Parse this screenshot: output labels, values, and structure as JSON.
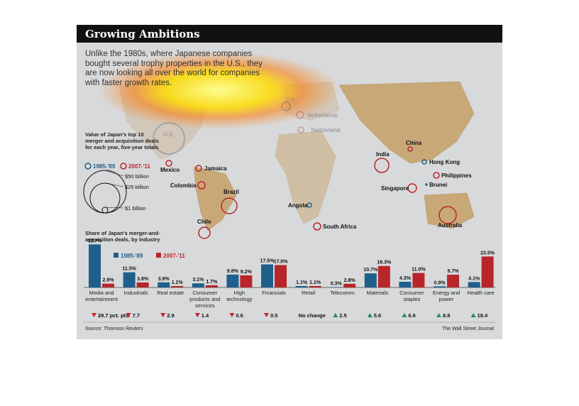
{
  "header": {
    "title": "Growing Ambitions",
    "intro": "Unlike the 1980s, where Japanese companies bought several trophy properties in the U.S., they are now looking all over the world for companies with faster growth rates."
  },
  "map": {
    "legend_title": "Value of Japan's top 10 merger and acquisition deals for each year, five-year totals",
    "period_a": "1985-'89",
    "period_b": "2007-'11",
    "scale": [
      "$50 billion",
      "$25 billion",
      "$1 billion"
    ],
    "places": [
      {
        "name": "U.S.",
        "period": "1985-'89",
        "faded": true
      },
      {
        "name": "U.K.",
        "period": "1985-'89",
        "faded": true
      },
      {
        "name": "Netherlands",
        "period": "2007-'11",
        "faded": true
      },
      {
        "name": "Switzerland",
        "period": "2007-'11",
        "faded": true
      },
      {
        "name": "Mexico",
        "period": "2007-'11"
      },
      {
        "name": "Jamaica",
        "period": "2007-'11"
      },
      {
        "name": "Colombia",
        "period": "2007-'11"
      },
      {
        "name": "Brazil",
        "period": "2007-'11"
      },
      {
        "name": "Chile",
        "period": "2007-'11"
      },
      {
        "name": "Angola",
        "period": "1985-'89"
      },
      {
        "name": "South Africa",
        "period": "2007-'11"
      },
      {
        "name": "India",
        "period": "2007-'11"
      },
      {
        "name": "China",
        "period": "2007-'11"
      },
      {
        "name": "Hong Kong",
        "period": "1985-'89"
      },
      {
        "name": "Philippines",
        "period": "2007-'11"
      },
      {
        "name": "Singapore",
        "period": "2007-'11"
      },
      {
        "name": "Brunei",
        "period": "1985-'89"
      },
      {
        "name": "Australia",
        "period": "2007-'11"
      }
    ]
  },
  "chart_data": {
    "type": "bar",
    "title": "Share of Japan's merger-and-acquisition deals, by industry",
    "categories": [
      "Media and entertainment",
      "Industrials",
      "Real estate",
      "Consumer products and services",
      "High technology",
      "Financials",
      "Retail",
      "Telecomm.",
      "Materials",
      "Consumer staples",
      "Energy and power",
      "Health care"
    ],
    "series": [
      {
        "name": "1985-'89",
        "color": "#1f5f8b",
        "values": [
          32.7,
          11.5,
          3.9,
          3.1,
          9.8,
          17.5,
          1.1,
          0.3,
          10.7,
          4.3,
          0.9,
          4.1
        ]
      },
      {
        "name": "2007-'11",
        "color": "#b8262b",
        "values": [
          2.9,
          3.8,
          1.1,
          1.7,
          9.2,
          17.0,
          1.1,
          2.8,
          16.3,
          11.0,
          9.7,
          23.5
        ]
      }
    ],
    "value_labels": {
      "1985-'89": [
        "32.7%",
        "11.5%",
        "3.9%",
        "3.1%",
        "9.8%",
        "17.5%",
        "1.1%",
        "0.3%",
        "10.7%",
        "4.3%",
        "0.9%",
        "4.1%"
      ],
      "2007-'11": [
        "2.9%",
        "3.8%",
        "1.1%",
        "1.7%",
        "9.2%",
        "17.0%",
        "1.1%",
        "2.8%",
        "16.3%",
        "11.0%",
        "9.7%",
        "23.5%"
      ]
    },
    "changes": [
      {
        "dir": "down",
        "text": "29.7 pct. pts."
      },
      {
        "dir": "down",
        "text": "7.7"
      },
      {
        "dir": "down",
        "text": "2.9"
      },
      {
        "dir": "down",
        "text": "1.4"
      },
      {
        "dir": "down",
        "text": "0.6"
      },
      {
        "dir": "down",
        "text": "0.5"
      },
      {
        "dir": "none",
        "text": "No change"
      },
      {
        "dir": "up",
        "text": "2.5"
      },
      {
        "dir": "up",
        "text": "5.6"
      },
      {
        "dir": "up",
        "text": "6.6"
      },
      {
        "dir": "up",
        "text": "8.8"
      },
      {
        "dir": "up",
        "text": "19.4"
      }
    ],
    "ylim": [
      0,
      35
    ],
    "up_color": "#2e8b57",
    "down_color": "#c0272d"
  },
  "footer": {
    "source": "Source: Thomson Reuters",
    "credit": "The Wall Street Journal"
  }
}
